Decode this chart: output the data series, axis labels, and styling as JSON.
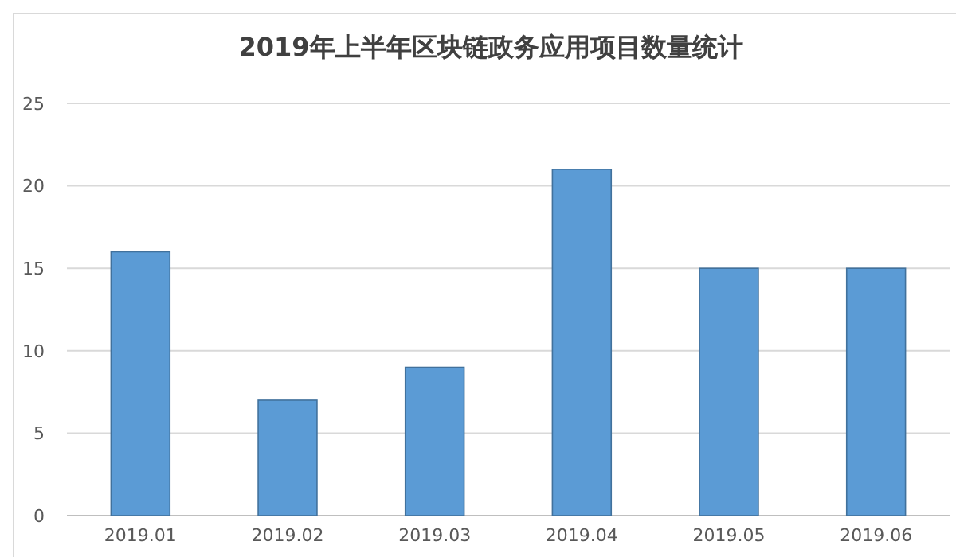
{
  "chart_data": {
    "type": "bar",
    "title": "2019年上半年区块链政务应用项目数量统计",
    "categories": [
      "2019.01",
      "2019.02",
      "2019.03",
      "2019.04",
      "2019.05",
      "2019.06"
    ],
    "values": [
      16,
      7,
      9,
      21,
      15,
      15
    ],
    "color": "#5b9bd5",
    "ylim": [
      0,
      25
    ],
    "yticks": [
      0,
      5,
      10,
      15,
      20,
      25
    ],
    "grid": "y"
  }
}
